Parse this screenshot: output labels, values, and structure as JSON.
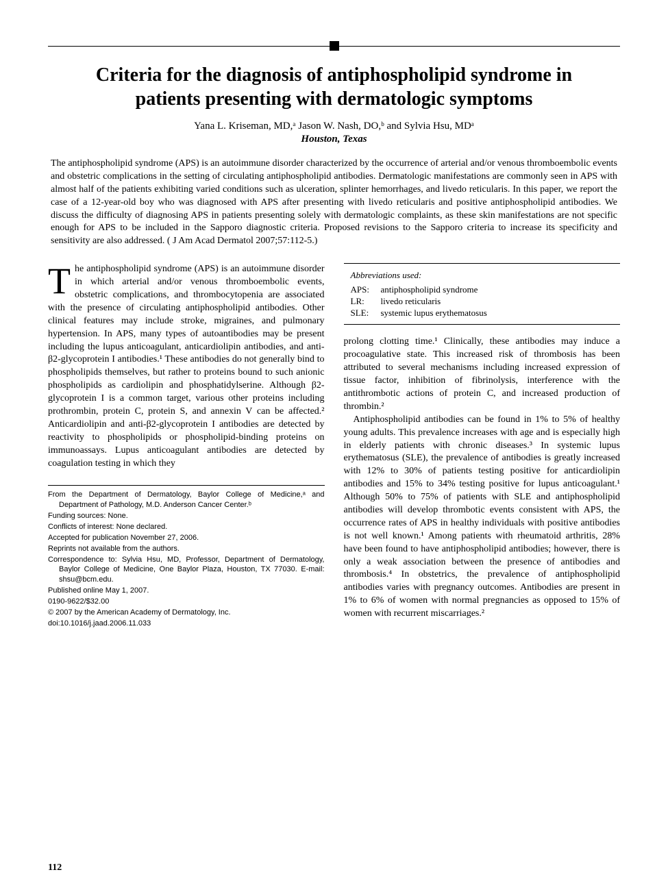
{
  "title": "Criteria for the diagnosis of antiphospholipid syndrome in patients presenting with dermatologic symptoms",
  "authors": "Yana L. Kriseman, MD,ᵃ Jason W. Nash, DO,ᵇ and Sylvia Hsu, MDᵃ",
  "location": "Houston, Texas",
  "abstract": "The antiphospholipid syndrome (APS) is an autoimmune disorder characterized by the occurrence of arterial and/or venous thromboembolic events and obstetric complications in the setting of circulating antiphospholipid antibodies. Dermatologic manifestations are commonly seen in APS with almost half of the patients exhibiting varied conditions such as ulceration, splinter hemorrhages, and livedo reticularis. In this paper, we report the case of a 12-year-old boy who was diagnosed with APS after presenting with livedo reticularis and positive antiphospholipid antibodies. We discuss the difficulty of diagnosing APS in patients presenting solely with dermatologic complaints, as these skin manifestations are not specific enough for APS to be included in the Sapporo diagnostic criteria. Proposed revisions to the Sapporo criteria to increase its specificity and sensitivity are also addressed. ( J Am Acad Dermatol 2007;57:112-5.)",
  "dropcap": "T",
  "col1_p1": "he antiphospholipid syndrome (APS) is an autoimmune disorder in which arterial and/or venous thromboembolic events, obstetric complications, and thrombocytopenia are associated with the presence of circulating antiphospholipid antibodies. Other clinical features may include stroke, migraines, and pulmonary hypertension. In APS, many types of autoantibodies may be present including the lupus anticoagulant, anticardiolipin antibodies, and anti-β2-glycoprotein I antibodies.¹ These antibodies do not generally bind to phospholipids themselves, but rather to proteins bound to such anionic phospholipids as cardiolipin and phosphatidylserine. Although β2-glycoprotein I is a common target, various other proteins including prothrombin, protein C, protein S, and annexin V can be affected.² Anticardiolipin and anti-β2-glycoprotein I antibodies are detected by reactivity to phospholipids or phospholipid-binding proteins on immunoassays. Lupus anticoagulant antibodies are detected by coagulation testing in which they",
  "footnotes": {
    "affiliation": "From the Department of Dermatology, Baylor College of Medicine,ᵃ and Department of Pathology, M.D. Anderson Cancer Center.ᵇ",
    "funding": "Funding sources: None.",
    "conflicts": "Conflicts of interest: None declared.",
    "accepted": "Accepted for publication November 27, 2006.",
    "reprints": "Reprints not available from the authors.",
    "correspondence": "Correspondence to: Sylvia Hsu, MD, Professor, Department of Dermatology, Baylor College of Medicine, One Baylor Plaza, Houston, TX 77030. E-mail: shsu@bcm.edu.",
    "published": "Published online May 1, 2007.",
    "issn": "0190-9622/$32.00",
    "copyright": "© 2007 by the American Academy of Dermatology, Inc.",
    "doi": "doi:10.1016/j.jaad.2006.11.033"
  },
  "abbrev": {
    "title": "Abbreviations used:",
    "items": [
      {
        "key": "APS:",
        "val": "antiphospholipid syndrome"
      },
      {
        "key": "LR:",
        "val": "livedo reticularis"
      },
      {
        "key": "SLE:",
        "val": "systemic lupus erythematosus"
      }
    ]
  },
  "col2_p1": "prolong clotting time.¹ Clinically, these antibodies may induce a procoagulative state. This increased risk of thrombosis has been attributed to several mechanisms including increased expression of tissue factor, inhibition of fibrinolysis, interference with the antithrombotic actions of protein C, and increased production of thrombin.²",
  "col2_p2": "Antiphospholipid antibodies can be found in 1% to 5% of healthy young adults. This prevalence increases with age and is especially high in elderly patients with chronic diseases.³ In systemic lupus erythematosus (SLE), the prevalence of antibodies is greatly increased with 12% to 30% of patients testing positive for anticardiolipin antibodies and 15% to 34% testing positive for lupus anticoagulant.¹ Although 50% to 75% of patients with SLE and antiphospholipid antibodies will develop thrombotic events consistent with APS, the occurrence rates of APS in healthy individuals with positive antibodies is not well known.¹ Among patients with rheumatoid arthritis, 28% have been found to have antiphospholipid antibodies; however, there is only a weak association between the presence of antibodies and thrombosis.⁴ In obstetrics, the prevalence of antiphospholipid antibodies varies with pregnancy outcomes. Antibodies are present in 1% to 6% of women with normal pregnancies as opposed to 15% of women with recurrent miscarriages.²",
  "page_number": "112"
}
